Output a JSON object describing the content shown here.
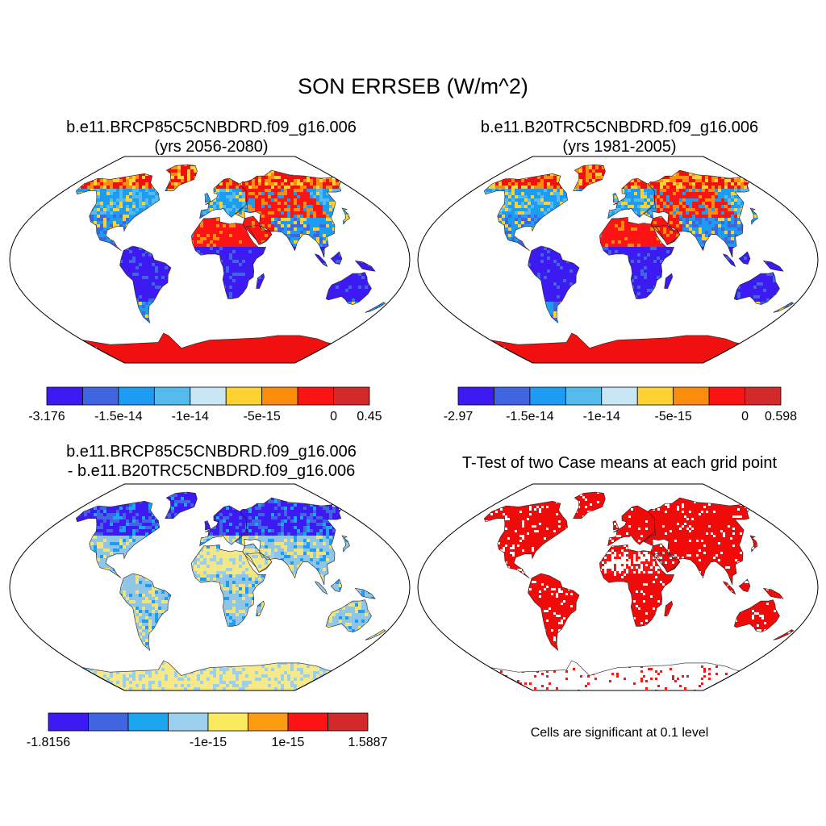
{
  "title": "SON ERRSEB (W/m^2)",
  "panels": [
    {
      "id": "case1",
      "title_line1": "b.e11.BRCP85C5CNBDRD.f09_g16.006",
      "title_line2": "(yrs 2056-2080)",
      "colorbar": {
        "colors": [
          "#3d19f2",
          "#4065e0",
          "#1c9cf2",
          "#54bced",
          "#c9e6f5",
          "#fcd232",
          "#fc8c0c",
          "#fc1414",
          "#d22a2a"
        ],
        "labels": [
          "-3.176",
          "-1.5e-14",
          "-1e-14",
          "-5e-15",
          "0",
          "0.45"
        ]
      }
    },
    {
      "id": "case2",
      "title_line1": "b.e11.B20TRC5CNBDRD.f09_g16.006",
      "title_line2": "(yrs 1981-2005)",
      "colorbar": {
        "colors": [
          "#3d19f2",
          "#4065e0",
          "#1c9cf2",
          "#54bced",
          "#c9e6f5",
          "#fcd232",
          "#fc8c0c",
          "#fc1414",
          "#d22a2a"
        ],
        "labels": [
          "-2.97",
          "-1.5e-14",
          "-1e-14",
          "-5e-15",
          "0",
          "0.598"
        ]
      }
    },
    {
      "id": "diff",
      "title_line1": "b.e11.BRCP85C5CNBDRD.f09_g16.006",
      "title_line2": "- b.e11.B20TRC5CNBDRD.f09_g16.006",
      "colorbar": {
        "colors": [
          "#3d19f2",
          "#4065e0",
          "#1ca6f2",
          "#9ad0ee",
          "#fbe960",
          "#fc9c10",
          "#fc1414",
          "#d22a2a"
        ],
        "labels": [
          "-1.8156",
          "-1e-15",
          "1e-15",
          "1.5887"
        ]
      }
    },
    {
      "id": "ttest",
      "title_line1": "T-Test of two Case means at each grid point",
      "note": "Cells are significant at 0.1 level"
    }
  ]
}
